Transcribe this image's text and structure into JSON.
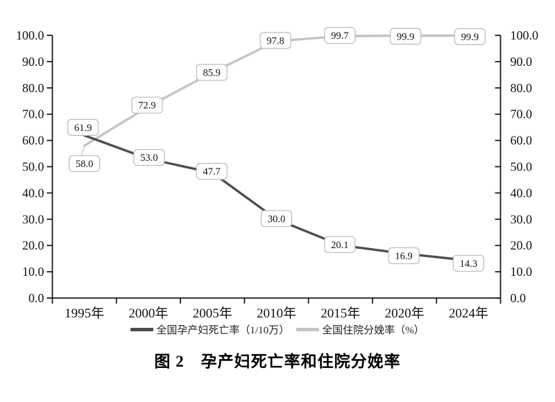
{
  "background": "#ffffff",
  "axis": {
    "color": "#1a1a1a"
  },
  "chart_data": {
    "type": "line",
    "title": "图 2　孕产妇死亡率和住院分娩率",
    "categories": [
      "1995年",
      "2000年",
      "2005年",
      "2010年",
      "2015年",
      "2020年",
      "2024年"
    ],
    "series": [
      {
        "name": "全国孕产妇死亡率（1/10万）",
        "values": [
          61.9,
          53.0,
          47.7,
          30.0,
          20.1,
          16.9,
          14.3
        ],
        "color": "#4d4d4d"
      },
      {
        "name": "全国住院分娩率（%）",
        "values": [
          58.0,
          72.9,
          85.9,
          97.8,
          99.7,
          99.9,
          99.9
        ],
        "color": "#c4c4c4"
      }
    ],
    "ylim": [
      0,
      100
    ],
    "ytick_step": 10,
    "ytick_label_decimals": 1,
    "dual_axis": true,
    "grid": false,
    "legend_position": "bottom",
    "data_labels": true,
    "label_box": {
      "fill": "#ffffff",
      "border": "#b9b9b9",
      "text": "#111111"
    }
  }
}
